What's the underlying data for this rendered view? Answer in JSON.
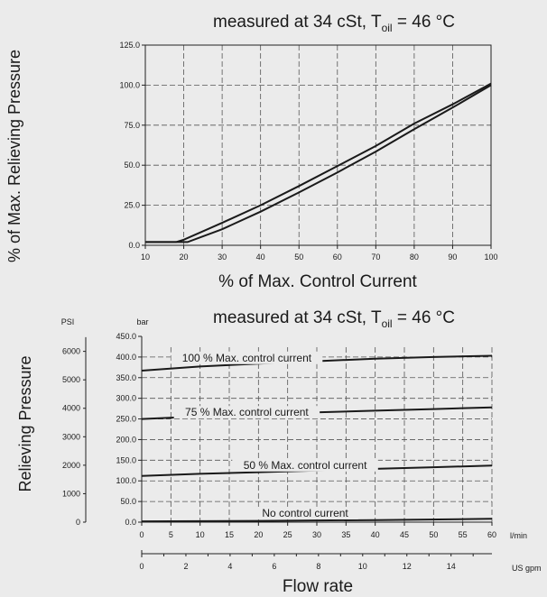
{
  "chart_data": [
    {
      "type": "line",
      "title_main": "measured at 34 cSt, T",
      "title_sub": "oil",
      "title_end": " = 46 °C",
      "xlabel": "% of Max. Control Current",
      "ylabel": "% of Max. Relieving Pressure",
      "xlim": [
        10,
        100
      ],
      "ylim": [
        0,
        125
      ],
      "x_ticks": [
        "10",
        "20",
        "30",
        "40",
        "50",
        "60",
        "70",
        "80",
        "90",
        "100"
      ],
      "y_ticks": [
        "0.0",
        "25.0",
        "50.0",
        "75.0",
        "100.0",
        "125.0"
      ],
      "grid": true,
      "series": [
        {
          "values": [
            [
              10,
              2
            ],
            [
              18,
              2
            ],
            [
              20,
              3.5
            ],
            [
              30,
              14
            ],
            [
              40,
              25
            ],
            [
              50,
              37
            ],
            [
              60,
              49.5
            ],
            [
              70,
              62
            ],
            [
              80,
              76
            ],
            [
              90,
              88
            ],
            [
              100,
              101
            ]
          ]
        },
        {
          "values": [
            [
              10,
              2
            ],
            [
              21,
              2
            ],
            [
              30,
              10
            ],
            [
              40,
              21
            ],
            [
              50,
              33
            ],
            [
              60,
              45.5
            ],
            [
              70,
              58.5
            ],
            [
              80,
              72.5
            ],
            [
              90,
              86
            ],
            [
              100,
              100
            ]
          ]
        }
      ]
    },
    {
      "type": "line",
      "title_main": "measured at 34 cSt, T",
      "title_sub": "oil",
      "title_end": " = 46 °C",
      "xlabel": "Flow rate",
      "ylabel": "Relieving Pressure",
      "x_unit": "l/min",
      "x2_unit": "US gpm",
      "y_unit": "bar",
      "y2_unit": "PSI",
      "xlim": [
        0,
        60
      ],
      "ylim": [
        0,
        450
      ],
      "x_ticks": [
        "0",
        "5",
        "10",
        "15",
        "20",
        "25",
        "30",
        "35",
        "40",
        "45",
        "50",
        "55",
        "60"
      ],
      "x2_ticks": [
        "0",
        "2",
        "4",
        "6",
        "8",
        "10",
        "12",
        "14"
      ],
      "y_ticks": [
        "0.0",
        "50.0",
        "100.0",
        "150.0",
        "200.0",
        "250.0",
        "300.0",
        "350.0",
        "400.0",
        "450.0"
      ],
      "y2_ticks": [
        "0",
        "1000",
        "2000",
        "3000",
        "4000",
        "5000",
        "6000"
      ],
      "grid": true,
      "series": [
        {
          "name": "100 % Max. control current",
          "values": [
            [
              0,
              367
            ],
            [
              10,
              377
            ],
            [
              20,
              384
            ],
            [
              30,
              390
            ],
            [
              40,
              396
            ],
            [
              50,
              400
            ],
            [
              60,
              403
            ]
          ]
        },
        {
          "name": "75 % Max. control current",
          "values": [
            [
              0,
              250
            ],
            [
              10,
              256
            ],
            [
              20,
              262
            ],
            [
              30,
              266
            ],
            [
              40,
              270
            ],
            [
              50,
              274
            ],
            [
              60,
              278
            ]
          ]
        },
        {
          "name": "50 % Max. control current",
          "values": [
            [
              0,
              112
            ],
            [
              10,
              117
            ],
            [
              20,
              121
            ],
            [
              30,
              125
            ],
            [
              40,
              129
            ],
            [
              50,
              133
            ],
            [
              60,
              137
            ]
          ]
        },
        {
          "name": "No control current",
          "values": [
            [
              0,
              2
            ],
            [
              20,
              3
            ],
            [
              40,
              5
            ],
            [
              60,
              8
            ]
          ]
        }
      ]
    }
  ]
}
